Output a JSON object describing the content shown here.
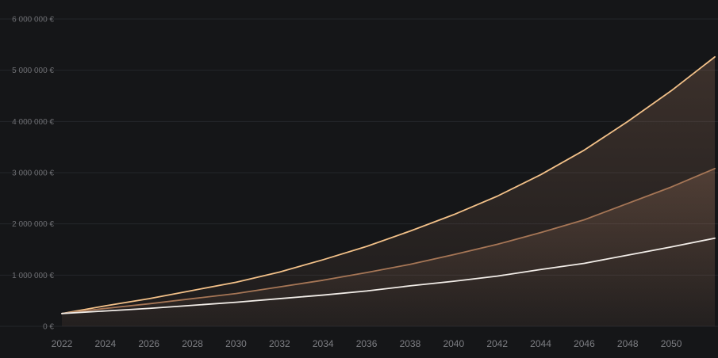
{
  "chart_data": {
    "type": "area",
    "title": "",
    "xlabel": "",
    "ylabel": "",
    "grid": true,
    "legend": "none",
    "xlim": [
      2022,
      2052
    ],
    "ylim": [
      0,
      6000000
    ],
    "y_ticks": [
      0,
      1000000,
      2000000,
      3000000,
      4000000,
      5000000,
      6000000
    ],
    "y_tick_labels": [
      "0 €",
      "1 000 000 €",
      "2 000 000 €",
      "3 000 000 €",
      "4 000 000 €",
      "5 000 000 €",
      "6 000 000 €"
    ],
    "x_ticks": [
      2022,
      2024,
      2026,
      2028,
      2030,
      2032,
      2034,
      2036,
      2038,
      2040,
      2042,
      2044,
      2046,
      2048,
      2050
    ],
    "x_tick_labels": [
      "2022",
      "2024",
      "2026",
      "2028",
      "2030",
      "2032",
      "2034",
      "2036",
      "2038",
      "2040",
      "2042",
      "2044",
      "2046",
      "2048",
      "2050"
    ],
    "colors": {
      "background": "#151618",
      "grid": "#24262a",
      "upper": "#f3c189",
      "middle": "#a67656",
      "lower": "#f2ede8",
      "fill": "#c89070"
    },
    "series": [
      {
        "color": "#f3c189",
        "x": [
          2022,
          2024,
          2026,
          2028,
          2030,
          2032,
          2034,
          2036,
          2038,
          2040,
          2042,
          2044,
          2046,
          2048,
          2050,
          2052
        ],
        "values": [
          250000,
          400000,
          540000,
          700000,
          860000,
          1060000,
          1300000,
          1560000,
          1860000,
          2180000,
          2540000,
          2960000,
          3440000,
          4000000,
          4600000,
          5260000
        ]
      },
      {
        "color": "#a67656",
        "x": [
          2022,
          2024,
          2026,
          2028,
          2030,
          2032,
          2034,
          2036,
          2038,
          2040,
          2042,
          2044,
          2046,
          2048,
          2050,
          2052
        ],
        "values": [
          250000,
          350000,
          440000,
          540000,
          640000,
          770000,
          900000,
          1050000,
          1210000,
          1400000,
          1600000,
          1830000,
          2080000,
          2400000,
          2720000,
          3080000
        ]
      },
      {
        "color": "#f2ede8",
        "x": [
          2022,
          2024,
          2026,
          2028,
          2030,
          2032,
          2034,
          2036,
          2038,
          2040,
          2042,
          2044,
          2046,
          2048,
          2050,
          2052
        ],
        "values": [
          250000,
          300000,
          350000,
          410000,
          470000,
          540000,
          610000,
          690000,
          790000,
          880000,
          980000,
          1110000,
          1230000,
          1390000,
          1550000,
          1720000
        ]
      }
    ]
  }
}
